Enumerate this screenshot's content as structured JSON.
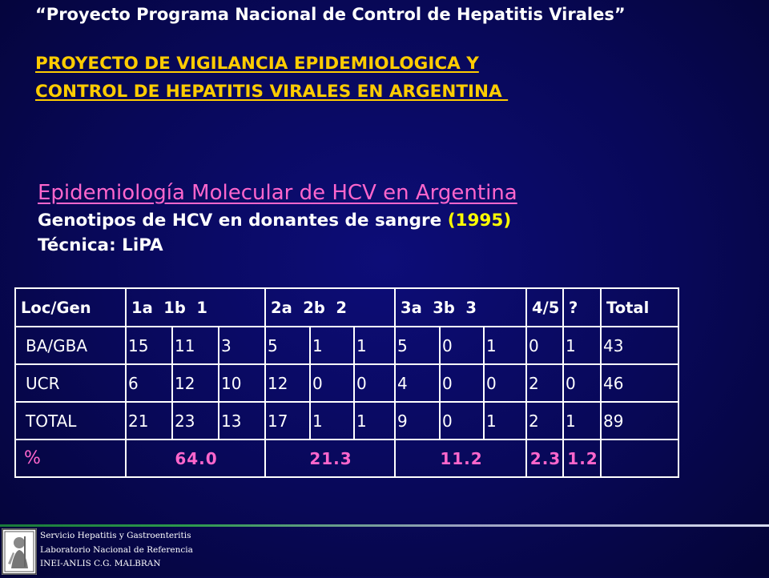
{
  "header": {
    "quote_title": "“Proyecto Programa Nacional de Control de Hepatitis Virales”",
    "project_line1": "PROYECTO DE VIGILANCIA EPIDEMIOLOGICA Y",
    "project_line2": "CONTROL DE HEPATITIS VIRALES EN ARGENTINA "
  },
  "section": {
    "title": "Epidemiología Molecular de HCV en Argentina",
    "genotype_line_prefix": "Genotipos de HCV en donantes de sangre ",
    "year": "(1995)",
    "technique": "Técnica: LiPA"
  },
  "table": {
    "headers": [
      "Loc/Gen",
      "1a  1b  1",
      "2a  2b  2",
      "3a  3b  3",
      "4/5",
      "?",
      "Total"
    ],
    "rows": [
      [
        "BA/GBA",
        "15",
        "11",
        "3",
        "5",
        "1",
        "1",
        "5",
        "0",
        "1",
        "0",
        "1",
        "43"
      ],
      [
        "UCR",
        "6",
        "12",
        "10",
        "12",
        "0",
        "0",
        "4",
        "0",
        "0",
        "2",
        "0",
        "46"
      ],
      [
        "TOTAL",
        "21",
        "23",
        "13",
        "17",
        "1",
        "1",
        "9",
        "0",
        "1",
        "2",
        "1",
        "89"
      ]
    ],
    "percent_row": [
      "%",
      "64.0",
      "21.3",
      "11.2",
      "2.3",
      "1.2",
      ""
    ]
  },
  "footer": {
    "line1": "Servicio Hepatitis y Gastroenteritis",
    "line2": "Laboratorio Nacional de Referencia",
    "line3": "INEI-ANLIS C.G. MALBRAN"
  },
  "colors": {
    "background": "#080858",
    "project_title": "#ffcc00",
    "section_title": "#ff66cc",
    "year": "#ffff00",
    "percent_row": "#ff66cc"
  }
}
